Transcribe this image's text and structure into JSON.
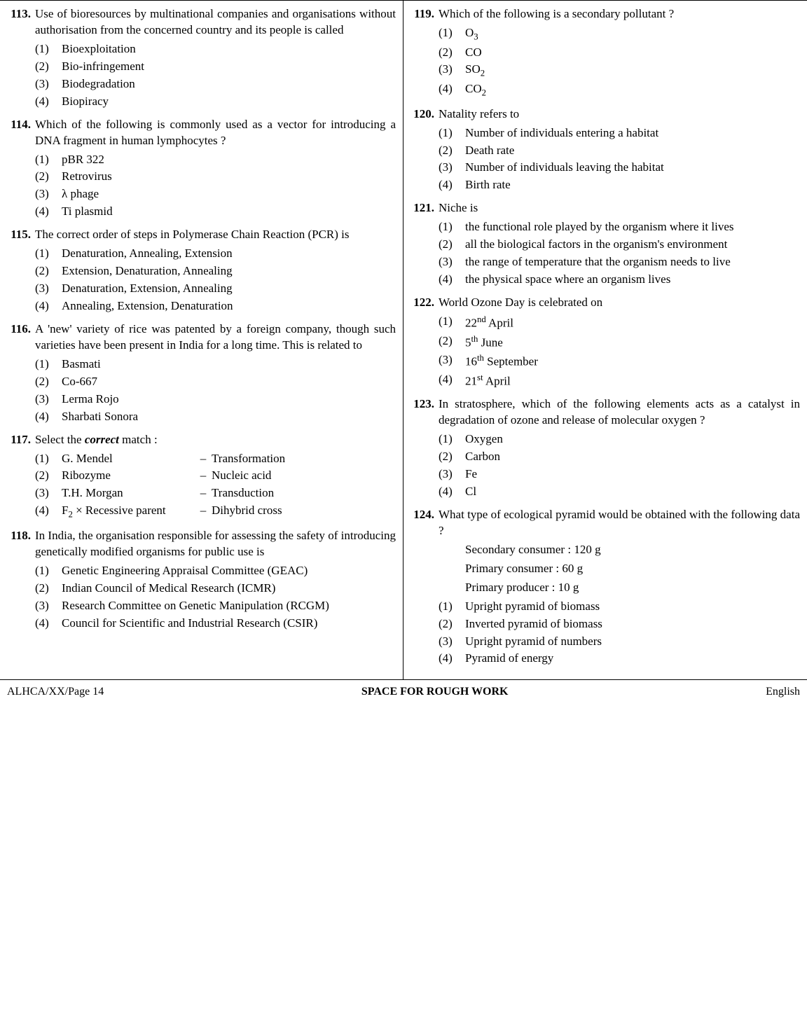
{
  "footer": {
    "left": "ALHCA/XX/Page 14",
    "center": "SPACE FOR ROUGH WORK",
    "right": "English"
  },
  "left": [
    {
      "num": "113.",
      "stem": "Use of bioresources by multinational companies and organisations without authorisation from the concerned country and its people is called",
      "options": [
        {
          "n": "(1)",
          "t": "Bioexploitation"
        },
        {
          "n": "(2)",
          "t": "Bio-infringement"
        },
        {
          "n": "(3)",
          "t": "Biodegradation"
        },
        {
          "n": "(4)",
          "t": "Biopiracy"
        }
      ]
    },
    {
      "num": "114.",
      "stem": "Which of the following is commonly used as a vector for introducing a DNA fragment in human lymphocytes ?",
      "options": [
        {
          "n": "(1)",
          "t": "pBR 322"
        },
        {
          "n": "(2)",
          "t": "Retrovirus"
        },
        {
          "n": "(3)",
          "t": "λ phage"
        },
        {
          "n": "(4)",
          "t": "Ti plasmid"
        }
      ]
    },
    {
      "num": "115.",
      "stem": "The correct order of steps in Polymerase Chain Reaction (PCR) is",
      "options": [
        {
          "n": "(1)",
          "t": "Denaturation, Annealing, Extension"
        },
        {
          "n": "(2)",
          "t": "Extension, Denaturation, Annealing"
        },
        {
          "n": "(3)",
          "t": "Denaturation, Extension, Annealing"
        },
        {
          "n": "(4)",
          "t": "Annealing, Extension, Denaturation"
        }
      ]
    },
    {
      "num": "116.",
      "stem": "A 'new' variety of rice was patented by a foreign company, though such varieties have been present in India for a long time. This is related to",
      "options": [
        {
          "n": "(1)",
          "t": "Basmati"
        },
        {
          "n": "(2)",
          "t": "Co-667"
        },
        {
          "n": "(3)",
          "t": "Lerma Rojo"
        },
        {
          "n": "(4)",
          "t": "Sharbati Sonora"
        }
      ]
    },
    {
      "num": "117.",
      "stem_html": "Select the <b><i>correct</i></b> match :",
      "matches": [
        {
          "n": "(1)",
          "l": "G. Mendel",
          "r": "Transformation"
        },
        {
          "n": "(2)",
          "l": "Ribozyme",
          "r": "Nucleic acid"
        },
        {
          "n": "(3)",
          "l": "T.H. Morgan",
          "r": "Transduction"
        },
        {
          "n": "(4)",
          "l_html": "F<sub>2</sub> × Recessive parent",
          "r": "Dihybrid cross"
        }
      ]
    },
    {
      "num": "118.",
      "stem": "In India, the organisation responsible for assessing the safety of introducing genetically modified organisms for public use is",
      "options": [
        {
          "n": "(1)",
          "t": "Genetic Engineering Appraisal Committee (GEAC)"
        },
        {
          "n": "(2)",
          "t": "Indian Council of Medical Research (ICMR)"
        },
        {
          "n": "(3)",
          "t": "Research Committee on Genetic Manipulation (RCGM)"
        },
        {
          "n": "(4)",
          "t": "Council for Scientific and Industrial Research (CSIR)"
        }
      ]
    }
  ],
  "right": [
    {
      "num": "119.",
      "stem": "Which of the following is a secondary pollutant ?",
      "options": [
        {
          "n": "(1)",
          "t_html": "O<sub>3</sub>"
        },
        {
          "n": "(2)",
          "t": "CO"
        },
        {
          "n": "(3)",
          "t_html": "SO<sub>2</sub>"
        },
        {
          "n": "(4)",
          "t_html": "CO<sub>2</sub>"
        }
      ]
    },
    {
      "num": "120.",
      "stem": "Natality refers to",
      "options": [
        {
          "n": "(1)",
          "t": "Number of individuals entering a habitat"
        },
        {
          "n": "(2)",
          "t": "Death rate"
        },
        {
          "n": "(3)",
          "t": "Number of individuals leaving the habitat"
        },
        {
          "n": "(4)",
          "t": "Birth rate"
        }
      ]
    },
    {
      "num": "121.",
      "stem": "Niche is",
      "options": [
        {
          "n": "(1)",
          "t": "the functional role played by the organism where it lives"
        },
        {
          "n": "(2)",
          "t": "all the biological factors in the organism's environment"
        },
        {
          "n": "(3)",
          "t": "the range of temperature that the organism needs to live"
        },
        {
          "n": "(4)",
          "t": "the physical space where an organism lives"
        }
      ]
    },
    {
      "num": "122.",
      "stem": "World Ozone Day is celebrated on",
      "options": [
        {
          "n": "(1)",
          "t_html": "22<sup>nd</sup> April"
        },
        {
          "n": "(2)",
          "t_html": "5<sup>th</sup> June"
        },
        {
          "n": "(3)",
          "t_html": "16<sup>th</sup> September"
        },
        {
          "n": "(4)",
          "t_html": "21<sup>st</sup> April"
        }
      ]
    },
    {
      "num": "123.",
      "stem": "In stratosphere, which of the following elements acts as a catalyst in degradation of ozone and release of molecular oxygen ?",
      "options": [
        {
          "n": "(1)",
          "t": "Oxygen"
        },
        {
          "n": "(2)",
          "t": "Carbon"
        },
        {
          "n": "(3)",
          "t": "Fe"
        },
        {
          "n": "(4)",
          "t": "Cl"
        }
      ]
    },
    {
      "num": "124.",
      "stem": "What type of ecological pyramid would be obtained with the following data ?",
      "extra_lines": [
        "Secondary consumer : 120 g",
        "Primary consumer : 60 g",
        "Primary producer : 10 g"
      ],
      "options": [
        {
          "n": "(1)",
          "t": "Upright pyramid of biomass"
        },
        {
          "n": "(2)",
          "t": "Inverted pyramid of biomass"
        },
        {
          "n": "(3)",
          "t": "Upright pyramid of numbers"
        },
        {
          "n": "(4)",
          "t": "Pyramid of energy"
        }
      ]
    }
  ]
}
